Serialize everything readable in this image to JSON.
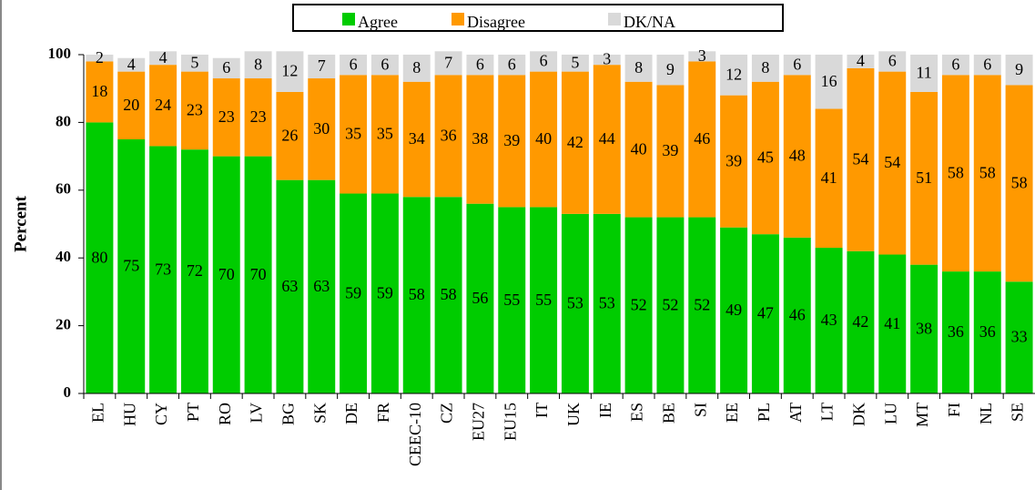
{
  "chart_data": {
    "type": "stacked_bar",
    "y_label": "Percent",
    "categories": [
      "EL",
      "HU",
      "CY",
      "PT",
      "RO",
      "LV",
      "BG",
      "SK",
      "DE",
      "FR",
      "CEEC-10",
      "CZ",
      "EU27",
      "EU15",
      "IT",
      "UK",
      "IE",
      "ES",
      "BE",
      "SI",
      "EE",
      "PL",
      "AT",
      "LT",
      "DK",
      "LU",
      "MT",
      "FI",
      "NL",
      "SE"
    ],
    "series": [
      {
        "name": "Agree",
        "color": "#00cc00",
        "values": [
          80,
          75,
          73,
          72,
          70,
          70,
          63,
          63,
          59,
          59,
          58,
          58,
          56,
          55,
          55,
          53,
          53,
          52,
          52,
          52,
          49,
          47,
          46,
          43,
          42,
          41,
          38,
          36,
          36,
          33
        ]
      },
      {
        "name": "Disagree",
        "color": "#ff9900",
        "values": [
          18,
          20,
          24,
          23,
          23,
          23,
          26,
          30,
          35,
          35,
          34,
          36,
          38,
          39,
          40,
          42,
          44,
          40,
          39,
          46,
          39,
          45,
          48,
          41,
          54,
          54,
          51,
          58,
          58,
          58
        ]
      },
      {
        "name": "DK/NA",
        "color": "#d9d9d9",
        "values": [
          2,
          4,
          4,
          5,
          6,
          8,
          12,
          7,
          6,
          6,
          8,
          7,
          6,
          6,
          6,
          5,
          3,
          8,
          9,
          3,
          12,
          8,
          6,
          16,
          4,
          6,
          11,
          6,
          6,
          9
        ]
      }
    ],
    "ylim": [
      0,
      100
    ],
    "yticks": [
      0,
      20,
      40,
      60,
      80,
      100
    ],
    "legend": "top"
  }
}
